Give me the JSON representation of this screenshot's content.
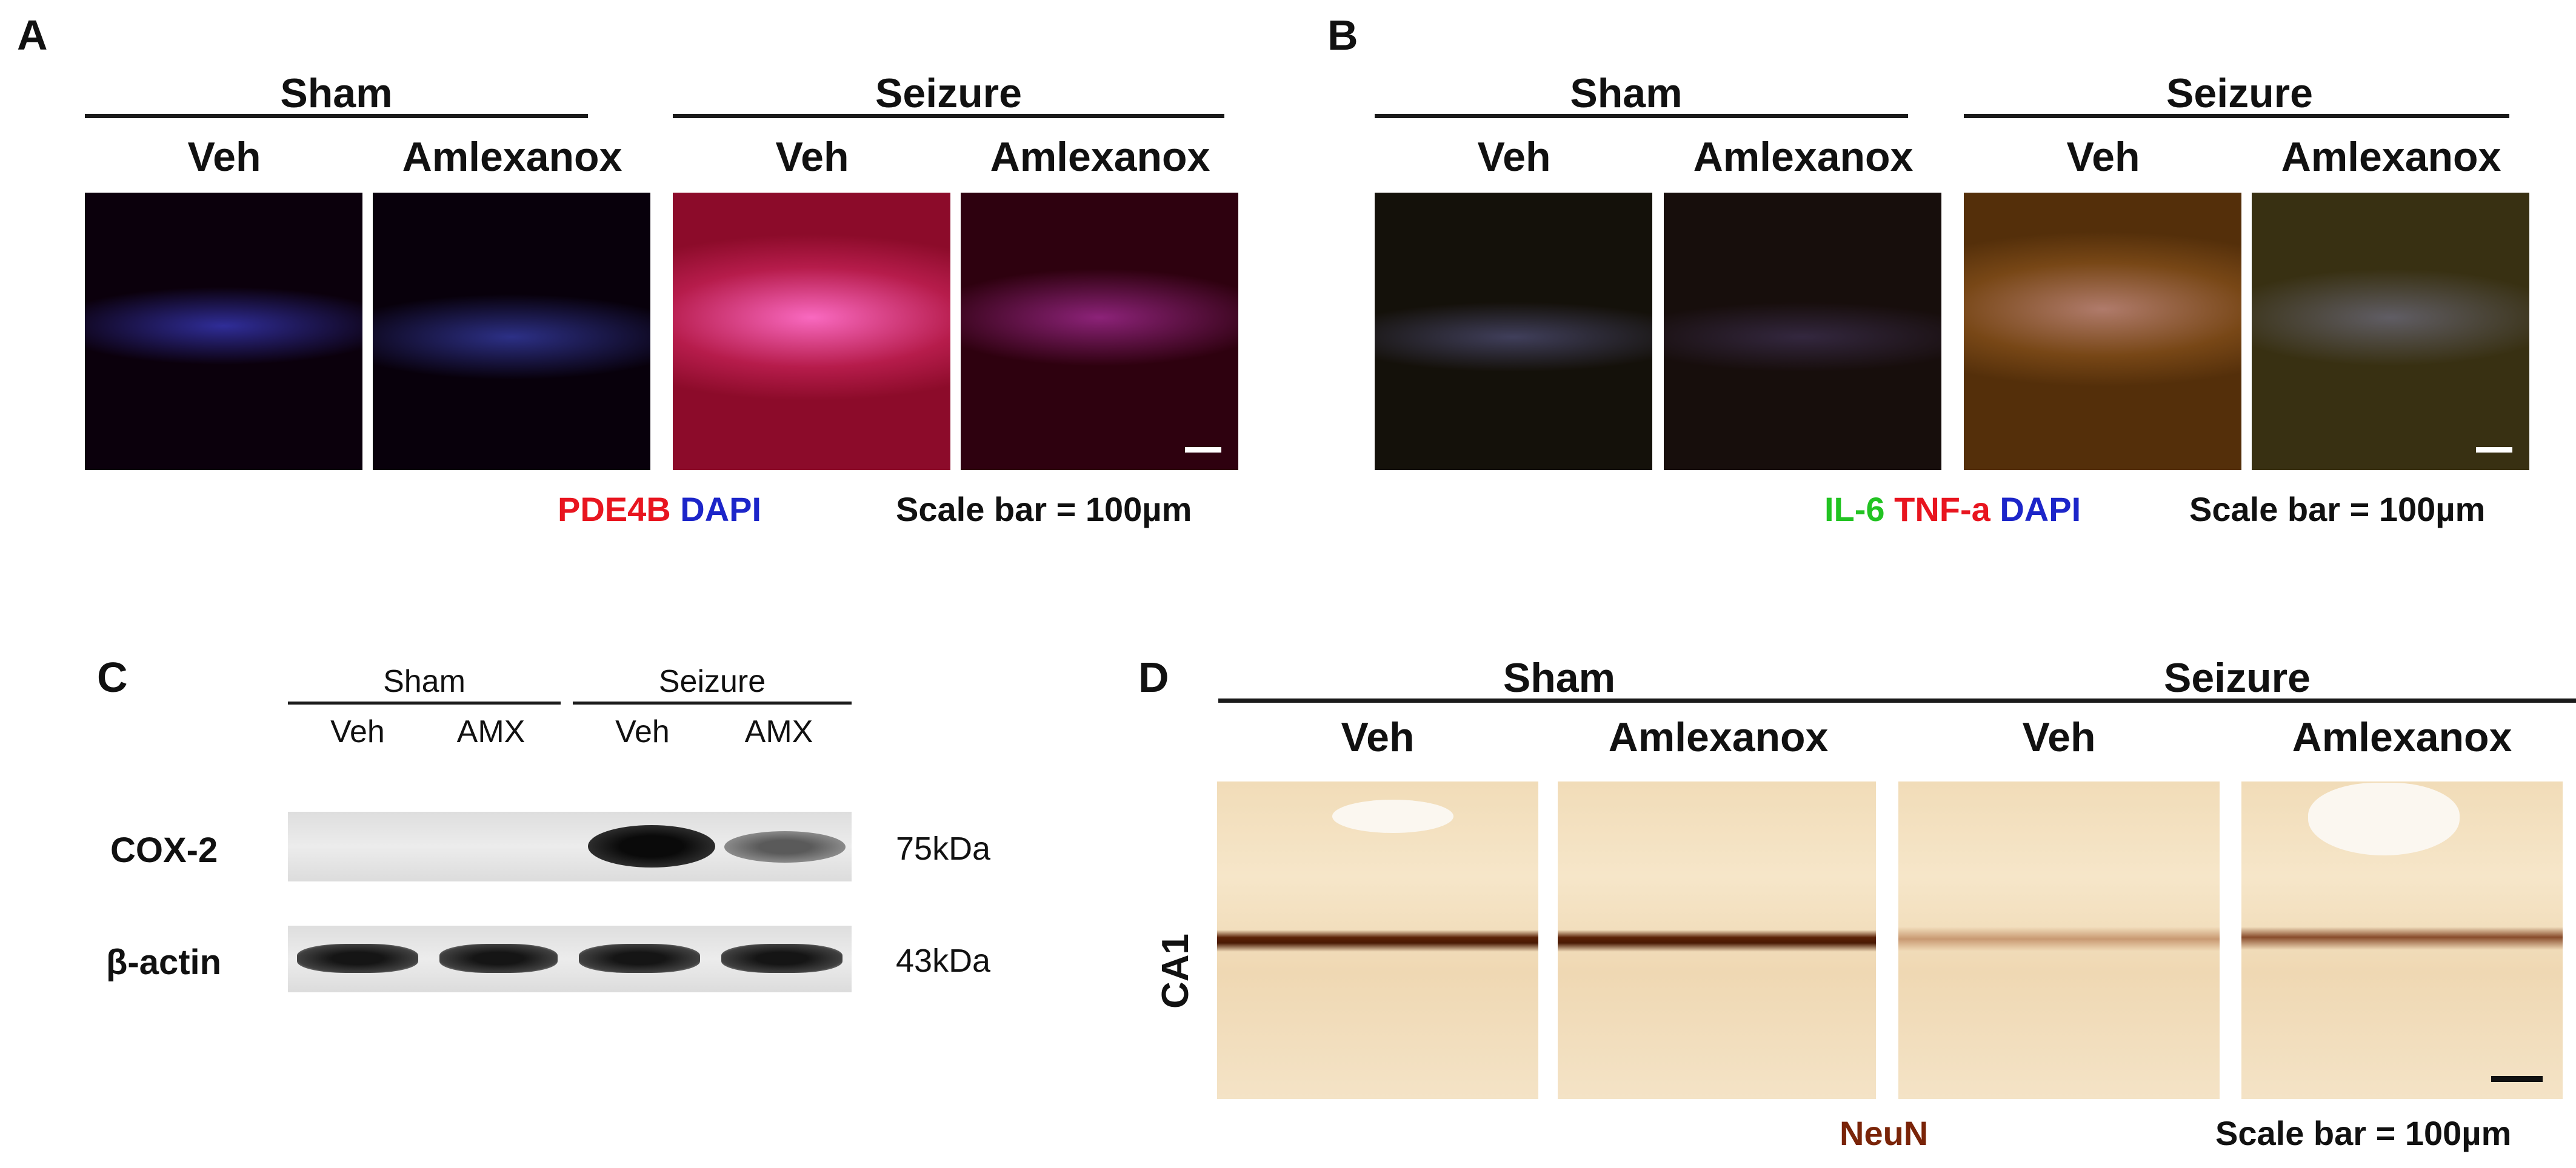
{
  "panel_a": {
    "letter": "A",
    "groups": [
      "Sham",
      "Seizure"
    ],
    "conditions": [
      "Veh",
      "Amlexanox",
      "Veh",
      "Amlexanox"
    ],
    "legend": [
      {
        "text": "PDE4B",
        "color": "#e8151f"
      },
      {
        "text": "DAPI",
        "color": "#1c25c9"
      }
    ],
    "scale_bar": "Scale bar = 100µm"
  },
  "panel_b": {
    "letter": "B",
    "groups": [
      "Sham",
      "Seizure"
    ],
    "conditions": [
      "Veh",
      "Amlexanox",
      "Veh",
      "Amlexanox"
    ],
    "legend": [
      {
        "text": "IL-6",
        "color": "#22c322"
      },
      {
        "text": "TNF-a",
        "color": "#e8151f"
      },
      {
        "text": "DAPI",
        "color": "#1c25c9"
      }
    ],
    "scale_bar": "Scale bar = 100µm"
  },
  "panel_c": {
    "letter": "C",
    "groups": [
      "Sham",
      "Seizure"
    ],
    "conditions": [
      "Veh",
      "AMX",
      "Veh",
      "AMX"
    ],
    "rows": [
      {
        "label": "COX-2",
        "size": "75kDa",
        "intensity": [
          0.02,
          0.02,
          1.0,
          0.5
        ]
      },
      {
        "label": "β-actin",
        "size": "43kDa",
        "intensity": [
          0.95,
          0.95,
          0.95,
          0.95
        ]
      }
    ]
  },
  "panel_d": {
    "letter": "D",
    "groups": [
      "Sham",
      "Seizure"
    ],
    "conditions": [
      "Veh",
      "Amlexanox",
      "Veh",
      "Amlexanox"
    ],
    "row_label": "CA1",
    "legend": [
      {
        "text": "NeuN",
        "color": "#7a2408"
      }
    ],
    "scale_bar": "Scale bar = 100µm"
  }
}
